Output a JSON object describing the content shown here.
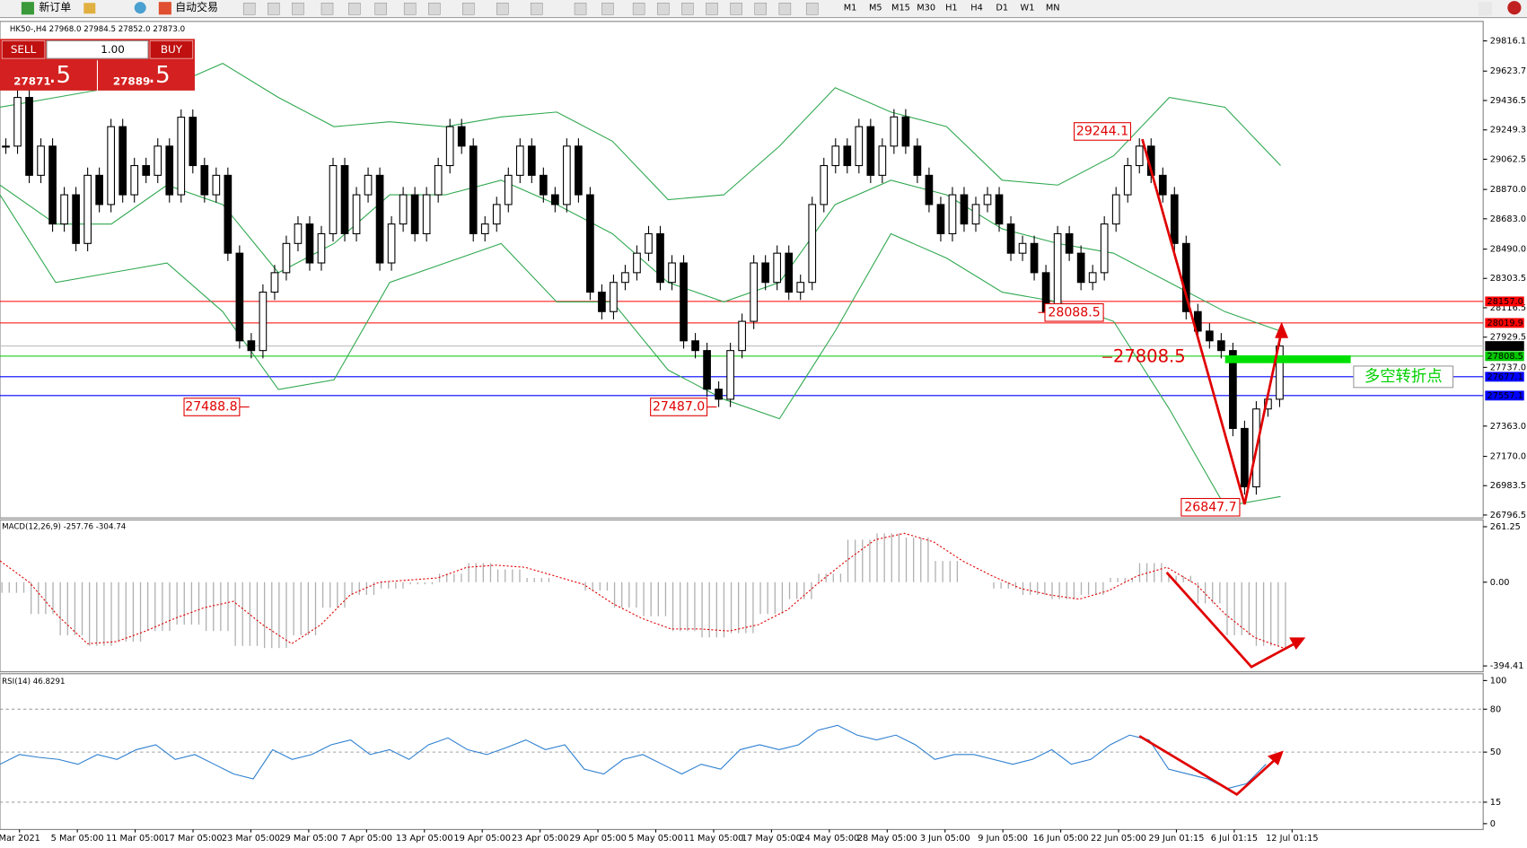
{
  "toolbar": {
    "new_order": "新订单",
    "auto_trade": "自动交易",
    "timeframes": [
      "M1",
      "M5",
      "M15",
      "M30",
      "H1",
      "H4",
      "D1",
      "W1",
      "MN"
    ]
  },
  "chart": {
    "symbol_header": "HK50-,H4  27968.0 27984.5 27852.0 27873.0",
    "trade_panel": {
      "sell": "SELL",
      "buy": "BUY",
      "lot": "1.00",
      "sell_main": "27871",
      "sell_frac": ".5",
      "buy_main": "27889",
      "buy_frac": ".5"
    },
    "price_ticks": [
      {
        "value": 29816.1,
        "label": "29816.1"
      },
      {
        "value": 29623.7,
        "label": "29623.7"
      },
      {
        "value": 29436.5,
        "label": "29436.5"
      },
      {
        "value": 29249.3,
        "label": "29249.3"
      },
      {
        "value": 29062.5,
        "label": "29062.5"
      },
      {
        "value": 28870.0,
        "label": "28870.0"
      },
      {
        "value": 28683.0,
        "label": "28683.0"
      },
      {
        "value": 28490.0,
        "label": "28490.0"
      },
      {
        "value": 28303.5,
        "label": "28303.5"
      },
      {
        "value": 28116.5,
        "label": "28116.5"
      },
      {
        "value": 27929.5,
        "label": "27929.5"
      },
      {
        "value": 27737.0,
        "label": "27737.0"
      },
      {
        "value": 27363.0,
        "label": "27363.0"
      },
      {
        "value": 27170.0,
        "label": "27170.0"
      },
      {
        "value": 26983.5,
        "label": "26983.5"
      },
      {
        "value": 26796.5,
        "label": "26796.5"
      }
    ],
    "levels": [
      {
        "value": 28157.0,
        "label": "28157.0",
        "color": "#ff0000"
      },
      {
        "value": 28019.9,
        "label": "28019.9",
        "color": "#ff0000"
      },
      {
        "value": 27873.0,
        "label": "27873.0",
        "color": "#000000"
      },
      {
        "value": 27808.5,
        "label": "27808.5",
        "color": "#00c800"
      },
      {
        "value": 27677.1,
        "label": "27677.1",
        "color": "#0000ff"
      },
      {
        "value": 27557.1,
        "label": "27557.1",
        "color": "#0000ff"
      }
    ],
    "annotations": {
      "low_march": "27488.8",
      "low_may": "27487.0",
      "low_june": "28088.5",
      "high_june": "29244.1",
      "low_july": "26847.7",
      "pivot": "27808.5",
      "pivot_note": "多空转折点"
    },
    "closes": [
      29146,
      29456,
      28960,
      29146,
      28650,
      28836,
      28526,
      28960,
      28774,
      29270,
      28836,
      29022,
      28960,
      29146,
      28836,
      29330,
      29022,
      28836,
      28960,
      28464,
      27906,
      27844,
      28216,
      28340,
      28526,
      28650,
      28402,
      28588,
      29022,
      28588,
      28836,
      28960,
      28402,
      28650,
      28836,
      28588,
      28836,
      29022,
      29270,
      29146,
      28588,
      28650,
      28774,
      28960,
      29146,
      28960,
      28836,
      28774,
      29146,
      28836,
      28216,
      28092,
      28278,
      28340,
      28464,
      28588,
      28278,
      28402,
      27906,
      27844,
      27598,
      27534,
      27844,
      28030,
      28402,
      28278,
      28464,
      28216,
      28278,
      28774,
      29022,
      29146,
      29022,
      29270,
      28960,
      29146,
      29332,
      29146,
      28960,
      28774,
      28588,
      28836,
      28650,
      28774,
      28836,
      28650,
      28464,
      28526,
      28340,
      28092,
      28588,
      28464,
      28278,
      28340,
      28650,
      28836,
      29022,
      29146,
      28960,
      28836,
      28526,
      28092,
      27968,
      27906,
      27844,
      27348,
      26976,
      27472,
      27534,
      27873
    ],
    "bollinger": {
      "upper": [
        29394,
        29456,
        29518,
        29518,
        29673,
        29456,
        29270,
        29301,
        29270,
        29332,
        29363,
        29177,
        28805,
        28836,
        29146,
        29518,
        29363,
        29270,
        28929,
        28898,
        29084,
        29456,
        29394,
        29022
      ],
      "middle": [
        28898,
        28650,
        28650,
        28898,
        28774,
        28340,
        28526,
        28836,
        28836,
        28929,
        28774,
        28588,
        28278,
        28154,
        28278,
        28774,
        28929,
        28836,
        28619,
        28526,
        28464,
        28278,
        28092,
        27968
      ],
      "lower": [
        28836,
        28278,
        28340,
        28402,
        28092,
        27596,
        27658,
        28278,
        28402,
        28526,
        28154,
        28154,
        27720,
        27534,
        27410,
        27968,
        28588,
        28433,
        28216,
        28154,
        28030,
        27472,
        26852,
        26914
      ]
    },
    "time_labels": [
      "Mar 2021",
      "5 Mar 05:00",
      "11 Mar 05:00",
      "17 Mar 05:00",
      "23 Mar 05:00",
      "29 Mar 05:00",
      "7 Apr 05:00",
      "13 Apr 05:00",
      "19 Apr 05:00",
      "23 Apr 05:00",
      "29 Apr 05:00",
      "5 May 05:00",
      "11 May 05:00",
      "17 May 05:00",
      "24 May 05:00",
      "28 May 05:00",
      "3 Jun 05:00",
      "9 Jun 05:00",
      "16 Jun 05:00",
      "22 Jun 05:00",
      "29 Jun 01:15",
      "6 Jul 01:15",
      "12 Jul 01:15"
    ]
  },
  "macd": {
    "label": "MACD(12,26,9) -257.76 -304.74",
    "ticks": [
      {
        "value": 261.25,
        "label": "261.25"
      },
      {
        "value": 0,
        "label": "0.00"
      },
      {
        "value": -394.41,
        "label": "-394.41"
      }
    ],
    "histogram": [
      -50,
      -150,
      -250,
      -300,
      -280,
      -230,
      -200,
      -230,
      -300,
      -310,
      -250,
      -120,
      -60,
      -30,
      -10,
      40,
      90,
      60,
      20,
      0,
      -40,
      -120,
      -160,
      -230,
      -260,
      -240,
      -150,
      -80,
      40,
      200,
      230,
      210,
      100,
      0,
      -30,
      -60,
      -80,
      -60,
      20,
      90,
      30,
      -100,
      -250,
      -300,
      -310
    ],
    "signal": [
      101,
      0,
      -160,
      -290,
      -280,
      -230,
      -170,
      -120,
      -90,
      -200,
      -290,
      -200,
      -60,
      0,
      10,
      20,
      70,
      80,
      70,
      30,
      -10,
      -100,
      -170,
      -220,
      -220,
      -230,
      -200,
      -130,
      -10,
      100,
      200,
      230,
      190,
      100,
      30,
      -30,
      -60,
      -80,
      -40,
      30,
      70,
      -10,
      -150,
      -260,
      -310
    ]
  },
  "rsi": {
    "label": "RSI(14) 46.8291",
    "ticks": [
      100,
      80,
      50,
      15,
      0
    ],
    "values": [
      41.5,
      48.3,
      46.3,
      44.9,
      41.5,
      48.3,
      44.9,
      51.7,
      55.1,
      44.9,
      48.3,
      41.5,
      34.7,
      31.3,
      51.7,
      44.9,
      48.3,
      55.1,
      58.5,
      48.3,
      51.7,
      44.9,
      55.1,
      59.9,
      51.7,
      48.3,
      53.1,
      58.5,
      51.7,
      55.1,
      38.1,
      34.7,
      44.9,
      48.3,
      41.5,
      34.7,
      41.5,
      38.1,
      51.7,
      55.1,
      51.7,
      55.1,
      65.3,
      68.7,
      61.9,
      58.5,
      61.9,
      55.1,
      44.9,
      48.3,
      48.3,
      44.9,
      41.5,
      44.9,
      51.7,
      41.5,
      44.9,
      55.1,
      61.9,
      58.5,
      38.1,
      34.7,
      31.3,
      24.5,
      27.9,
      41.5
    ]
  }
}
